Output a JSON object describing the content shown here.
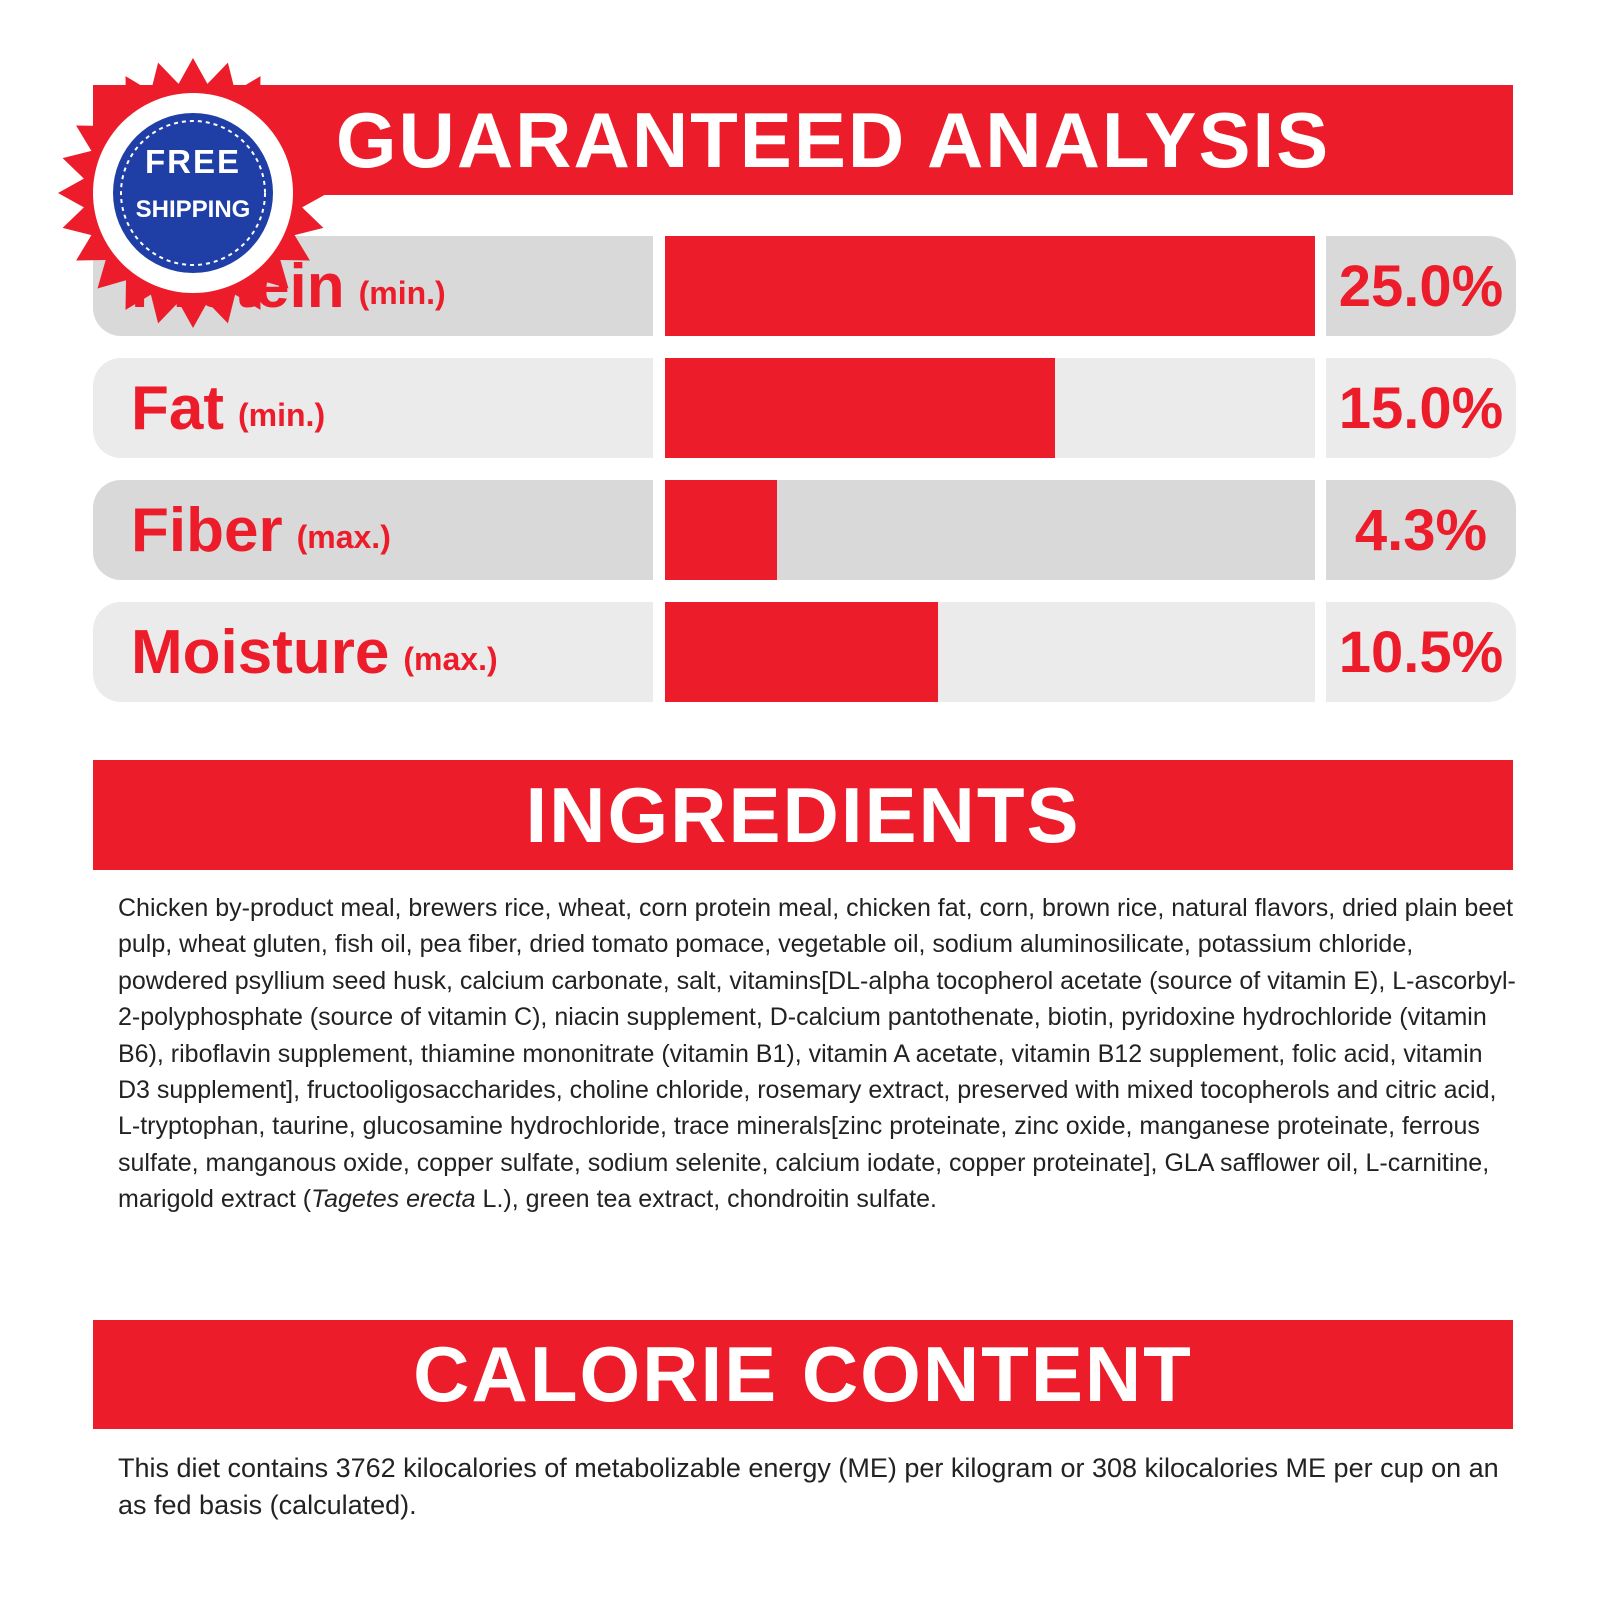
{
  "badge": {
    "line1": "FREE",
    "line2": "SHIPPING"
  },
  "chart_data": {
    "type": "bar",
    "orientation": "horizontal",
    "title": "GUARANTEED ANALYSIS",
    "categories": [
      "Protein",
      "Fat",
      "Fiber",
      "Moisture"
    ],
    "qualifiers": [
      "(min.)",
      "(min.)",
      "(max.)",
      "(max.)"
    ],
    "values": [
      25.0,
      15.0,
      4.3,
      10.5
    ],
    "value_labels": [
      "25.0%",
      "15.0%",
      "4.3%",
      "10.5%"
    ],
    "color": "#ec1c2a",
    "xlim": [
      0,
      25
    ]
  },
  "ingredients": {
    "title": "INGREDIENTS",
    "text_before": "Chicken by-product meal, brewers rice, wheat, corn protein meal, chicken fat, corn, brown rice, natural flavors, dried plain beet pulp, wheat gluten, fish oil, pea fiber, dried tomato pomace, vegetable oil, sodium aluminosilicate, potassium chloride, powdered psyllium seed husk, calcium carbonate, salt, vitamins[DL-alpha tocopherol acetate (source of vitamin E), L-ascorbyl-2-polyphosphate (source of vitamin C), niacin supplement, D-calcium pantothenate, biotin, pyridoxine hydrochloride (vitamin B6), riboflavin supplement, thiamine mononitrate (vitamin B1), vitamin A acetate, vitamin B12 supplement, folic acid, vitamin D3 supplement], fructooligosaccharides, choline chloride, rosemary extract, preserved with mixed tocopherols and citric acid, L-tryptophan, taurine, glucosamine hydrochloride, trace minerals[zinc proteinate, zinc oxide, manganese proteinate, ferrous sulfate, manganous oxide, copper sulfate, sodium selenite, calcium iodate, copper proteinate], GLA safflower oil, L-carnitine, marigold extract (",
    "text_italic": "Tagetes erecta",
    "text_after": " L.), green tea extract, chondroitin sulfate."
  },
  "calorie": {
    "title": "CALORIE CONTENT",
    "text": "This diet contains 3762 kilocalories of metabolizable energy (ME) per kilogram or 308 kilocalories ME per cup on an as fed basis (calculated)."
  }
}
